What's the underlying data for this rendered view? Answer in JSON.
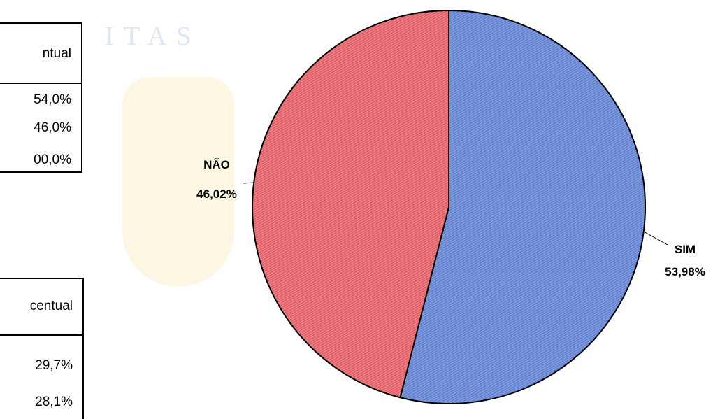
{
  "watermark": "ITAS",
  "table1": {
    "header": "ntual",
    "rows": [
      "54,0%",
      "46,0%",
      "00,0%"
    ]
  },
  "table2": {
    "header": "centual",
    "rows": [
      "29,7%",
      "28,1%"
    ]
  },
  "chart_data": {
    "type": "pie",
    "categories": [
      "SIM",
      "NÃO"
    ],
    "values": [
      53.98,
      46.02
    ],
    "value_labels": [
      "53,98%",
      "46,02%"
    ],
    "colors": [
      "#6b8bd6",
      "#e4646c"
    ]
  }
}
